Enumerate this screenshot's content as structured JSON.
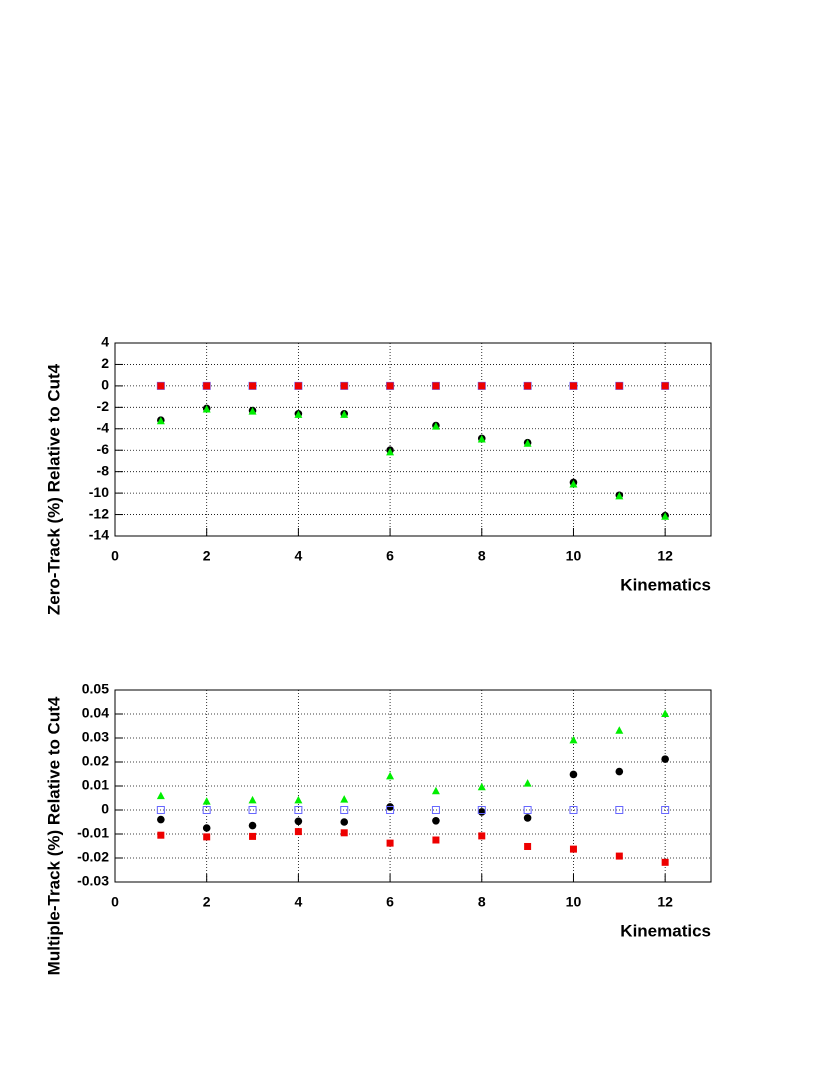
{
  "chart_data": [
    {
      "type": "scatter",
      "ylabel": "Zero-Track (%) Relative to Cut4",
      "xlabel": "Kinematics",
      "xlim": [
        0,
        13
      ],
      "xticks": [
        0,
        2,
        4,
        6,
        8,
        10,
        12
      ],
      "ylim": [
        -14,
        4
      ],
      "yticks": [
        4,
        2,
        0,
        -2,
        -4,
        -6,
        -8,
        -10,
        -12,
        -14
      ],
      "grid": true,
      "x": [
        1,
        2,
        3,
        4,
        5,
        6,
        7,
        8,
        9,
        10,
        11,
        12
      ],
      "series": [
        {
          "marker": "circle",
          "color": "#000000",
          "values": [
            -3.2,
            -2.1,
            -2.3,
            -2.6,
            -2.6,
            -6.0,
            -3.7,
            -4.9,
            -5.3,
            -9.0,
            -10.2,
            -12.1
          ]
        },
        {
          "marker": "triangle",
          "color": "#00ee00",
          "values": [
            -3.3,
            -2.2,
            -2.4,
            -2.7,
            -2.7,
            -6.2,
            -3.8,
            -5.0,
            -5.4,
            -9.2,
            -10.3,
            -12.2
          ]
        },
        {
          "marker": "open-square",
          "color": "#6666ff",
          "values": [
            0,
            0,
            0,
            0,
            0,
            0,
            0,
            0,
            0,
            0,
            0,
            0
          ]
        },
        {
          "marker": "square",
          "color": "#ee0000",
          "values": [
            0,
            0,
            0,
            0,
            0,
            0,
            0,
            0,
            0,
            0,
            0,
            0
          ]
        }
      ]
    },
    {
      "type": "scatter",
      "ylabel": "Multiple-Track (%) Relative to Cut4",
      "xlabel": "Kinematics",
      "xlim": [
        0,
        13
      ],
      "xticks": [
        0,
        2,
        4,
        6,
        8,
        10,
        12
      ],
      "ylim": [
        -0.03,
        0.05
      ],
      "yticks": [
        0.05,
        0.04,
        0.03,
        0.02,
        0.01,
        0,
        -0.01,
        -0.02,
        -0.03
      ],
      "grid": true,
      "x": [
        1,
        2,
        3,
        4,
        5,
        6,
        7,
        8,
        9,
        10,
        11,
        12
      ],
      "series": [
        {
          "marker": "circle",
          "color": "#000000",
          "values": [
            -0.004,
            -0.0075,
            -0.0065,
            -0.0047,
            -0.005,
            0.0013,
            -0.0045,
            -0.0008,
            -0.0033,
            0.0148,
            0.016,
            0.0212
          ]
        },
        {
          "marker": "triangle",
          "color": "#00ee00",
          "values": [
            0.0058,
            0.0035,
            0.004,
            0.004,
            0.0043,
            0.014,
            0.0078,
            0.0095,
            0.011,
            0.029,
            0.033,
            0.04
          ]
        },
        {
          "marker": "open-square",
          "color": "#6666ff",
          "values": [
            0,
            0,
            0,
            0,
            0,
            0,
            0,
            0,
            0,
            0,
            0,
            0
          ]
        },
        {
          "marker": "square",
          "color": "#ee0000",
          "values": [
            -0.0105,
            -0.0112,
            -0.011,
            -0.009,
            -0.0095,
            -0.0138,
            -0.0125,
            -0.0108,
            -0.0152,
            -0.0163,
            -0.0192,
            -0.0218
          ]
        }
      ]
    }
  ]
}
